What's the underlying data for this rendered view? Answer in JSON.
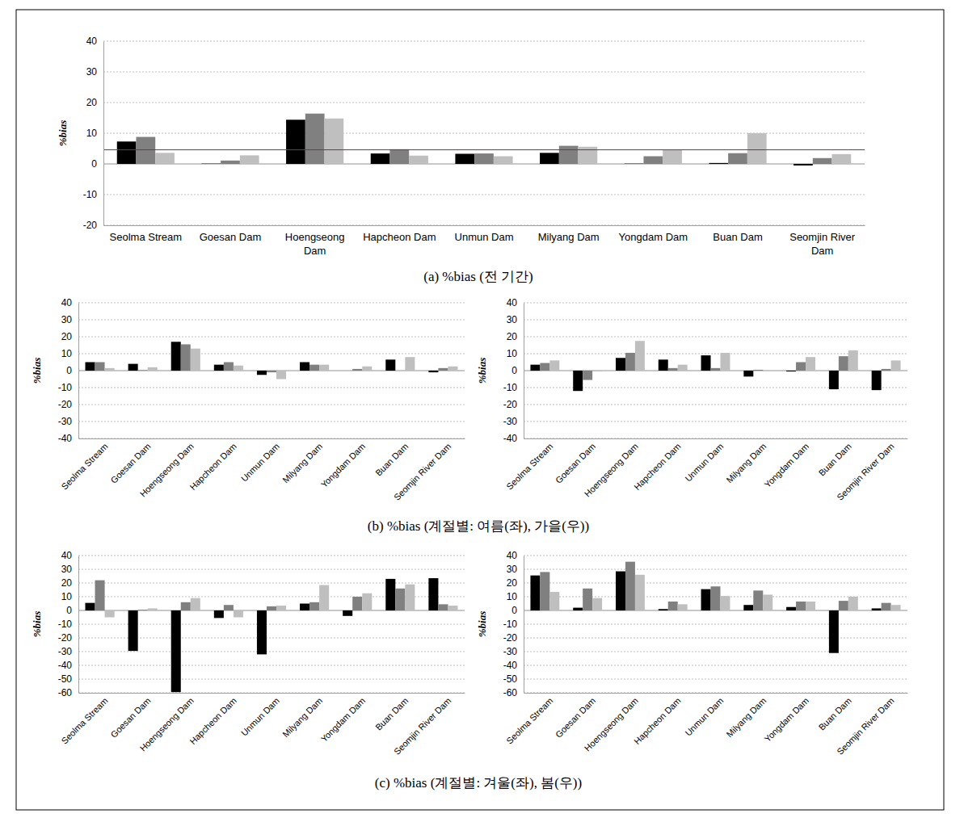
{
  "chart_data": [
    {
      "type": "bar",
      "ylabel": "%bias",
      "categories": [
        "Seolma Stream",
        "Goesan Dam",
        "Hoengseong Dam",
        "Hapcheon Dam",
        "Unmun Dam",
        "Milyang Dam",
        "Yongdam Dam",
        "Buan Dam",
        "Seomjin River Dam"
      ],
      "series": [
        {
          "color": "#000000",
          "values": [
            7.3,
            0.1,
            14.4,
            3.4,
            3.3,
            3.6,
            0.1,
            0.3,
            -0.5
          ]
        },
        {
          "color": "#808080",
          "values": [
            8.8,
            1.1,
            16.4,
            4.8,
            3.4,
            5.9,
            2.5,
            3.5,
            1.9
          ]
        },
        {
          "color": "#bfbfbf",
          "values": [
            3.6,
            2.8,
            14.8,
            2.7,
            2.5,
            5.6,
            4.6,
            10.0,
            3.2
          ]
        }
      ],
      "hline": 4.6,
      "ylim": [
        -20,
        40
      ],
      "yticks": [
        -20,
        -10,
        0,
        10,
        20,
        30,
        40
      ],
      "grid": true
    },
    {
      "type": "bar",
      "ylabel": "%bias",
      "categories": [
        "Seolma Stream",
        "Goesan Dam",
        "Hoengseong Dam",
        "Hapcheon Dam",
        "Unmun Dam",
        "Milyang Dam",
        "Yongdam Dam",
        "Buan Dam",
        "Seomjin River Dam"
      ],
      "series": [
        {
          "color": "#000000",
          "values": [
            5,
            4,
            17,
            3.5,
            -2.5,
            5,
            0,
            6.5,
            -1
          ]
        },
        {
          "color": "#808080",
          "values": [
            5,
            0.3,
            15.5,
            5,
            -1,
            3.5,
            1,
            0,
            1.5
          ]
        },
        {
          "color": "#bfbfbf",
          "values": [
            1.5,
            2,
            13,
            3,
            -5,
            3.5,
            2.5,
            8,
            2.5
          ]
        }
      ],
      "ylim": [
        -40,
        40
      ],
      "yticks": [
        -40,
        -30,
        -20,
        -10,
        0,
        10,
        20,
        30,
        40
      ],
      "grid": true
    },
    {
      "type": "bar",
      "ylabel": "%bias",
      "categories": [
        "Seolma Stream",
        "Goesan Dam",
        "Hoengseong Dam",
        "Hapcheon Dam",
        "Unmun Dam",
        "Milyang Dam",
        "Yongdam Dam",
        "Buan Dam",
        "Seomjin River Dam"
      ],
      "series": [
        {
          "color": "#000000",
          "values": [
            3.5,
            -12,
            7.5,
            6.5,
            9,
            -3.5,
            -0.5,
            -11,
            -11.5
          ]
        },
        {
          "color": "#808080",
          "values": [
            4.5,
            -5.5,
            10.5,
            1.5,
            1.5,
            0.5,
            5,
            8.5,
            1
          ]
        },
        {
          "color": "#bfbfbf",
          "values": [
            6,
            -0.5,
            17.5,
            3.5,
            10.5,
            0,
            8,
            12,
            6
          ]
        }
      ],
      "ylim": [
        -40,
        40
      ],
      "yticks": [
        -40,
        -30,
        -20,
        -10,
        0,
        10,
        20,
        30,
        40
      ],
      "grid": true
    },
    {
      "type": "bar",
      "ylabel": "%bias",
      "categories": [
        "Seolma Stream",
        "Goesan Dam",
        "Hoengseong Dam",
        "Hapcheon Dam",
        "Unmun Dam",
        "Milyang Dam",
        "Yongdam Dam",
        "Buan Dam",
        "Seomjin River Dam"
      ],
      "series": [
        {
          "color": "#000000",
          "values": [
            5.5,
            -29.5,
            -59.5,
            -5.5,
            -32,
            5,
            -4,
            23,
            23.5
          ]
        },
        {
          "color": "#808080",
          "values": [
            22,
            0.5,
            6,
            4,
            3,
            6,
            10,
            16,
            4.5
          ]
        },
        {
          "color": "#bfbfbf",
          "values": [
            -5,
            1.5,
            9,
            -5,
            3.5,
            18.5,
            12.5,
            19,
            3.5
          ]
        }
      ],
      "ylim": [
        -60,
        40
      ],
      "yticks": [
        -60,
        -50,
        -40,
        -30,
        -20,
        -10,
        0,
        10,
        20,
        30,
        40
      ],
      "grid": true
    },
    {
      "type": "bar",
      "ylabel": "%bias",
      "categories": [
        "Seolma Stream",
        "Goesan Dam",
        "Hoengseong Dam",
        "Hapcheon Dam",
        "Unmun Dam",
        "Milyang Dam",
        "Yongdam Dam",
        "Buan Dam",
        "Seomjin River Dam"
      ],
      "series": [
        {
          "color": "#000000",
          "values": [
            25.5,
            2,
            28.5,
            1,
            15.5,
            4,
            2.5,
            -31,
            1.5
          ]
        },
        {
          "color": "#808080",
          "values": [
            28,
            16,
            35.5,
            6.5,
            17.5,
            14.5,
            6.5,
            7,
            5.5
          ]
        },
        {
          "color": "#bfbfbf",
          "values": [
            13.5,
            9,
            26,
            4.5,
            10.5,
            11.5,
            6.5,
            10,
            4
          ]
        }
      ],
      "ylim": [
        -60,
        40
      ],
      "yticks": [
        -60,
        -50,
        -40,
        -30,
        -20,
        -10,
        0,
        10,
        20,
        30,
        40
      ],
      "grid": true
    }
  ],
  "captions": [
    "(a)  %bias (전 기간)",
    "(b)  %bias (계절별: 여름(좌), 가을(우))",
    "(c)  %bias (계절별: 겨울(좌), 봄(우))"
  ]
}
